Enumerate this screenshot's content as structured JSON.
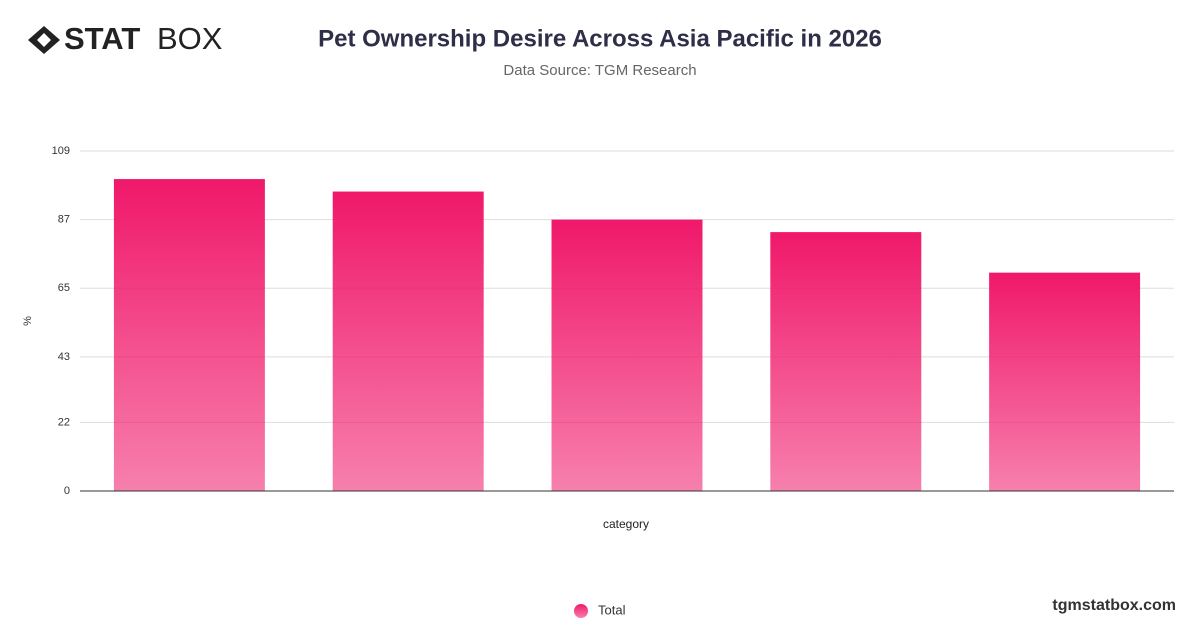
{
  "brand": {
    "bold": "STAT",
    "light": "BOX"
  },
  "footer": "tgmstatbox.com",
  "chart_data": {
    "type": "bar",
    "title": "Pet Ownership Desire Across Asia Pacific in 2026",
    "subtitle": "Data Source: TGM Research",
    "y_label": "%",
    "x_label": "category",
    "categories": [
      null,
      null,
      null,
      null,
      null
    ],
    "series": [
      {
        "name": "Total",
        "color": "#f0186a",
        "values": [
          100,
          96,
          87,
          83,
          70
        ]
      }
    ],
    "ylim": [
      0,
      109
    ],
    "yticks": [
      0,
      22,
      43,
      65,
      87,
      109
    ],
    "grid": true
  }
}
